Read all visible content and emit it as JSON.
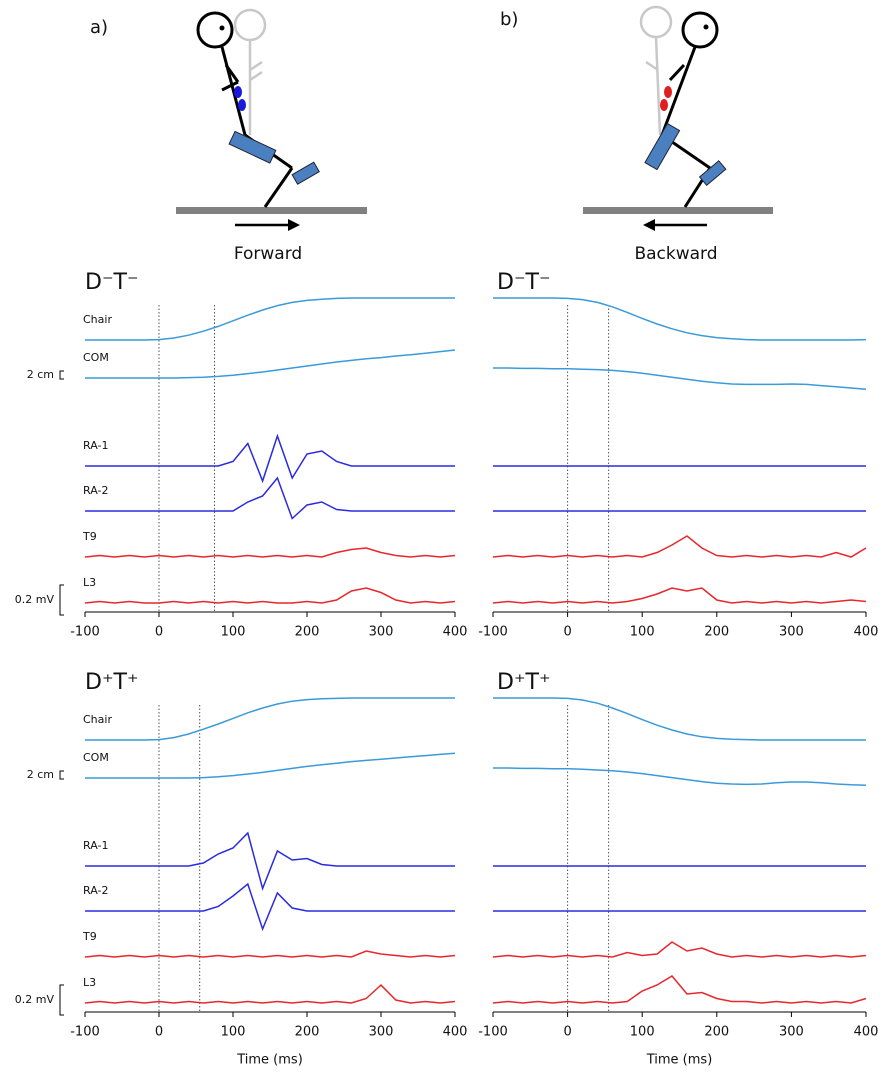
{
  "illustration": {
    "labels": [
      "a)",
      "b)"
    ],
    "directions": [
      "Forward",
      "Backward"
    ]
  },
  "chart_data": [
    {
      "type": "line",
      "title": "D⁻T⁻",
      "xlim": [
        -100,
        400
      ],
      "xticks": [
        -100,
        0,
        100,
        200,
        300,
        400
      ],
      "markers": [
        0,
        75
      ],
      "scale_bars": [
        {
          "label": "2 cm",
          "value": 2
        },
        {
          "label": "0.2 mV",
          "value": 0.2
        }
      ],
      "x": [
        -100,
        -80,
        -60,
        -40,
        -20,
        0,
        20,
        40,
        60,
        80,
        100,
        120,
        140,
        160,
        180,
        200,
        220,
        240,
        260,
        280,
        300,
        320,
        340,
        360,
        380,
        400
      ],
      "series": [
        {
          "name": "Chair",
          "color": "#3b9ad9",
          "values": [
            0,
            0,
            0,
            0,
            0,
            0.1,
            0.5,
            1.2,
            2.2,
            3.4,
            4.8,
            6.2,
            7.5,
            8.6,
            9.4,
            9.9,
            10.2,
            10.4,
            10.5,
            10.5,
            10.5,
            10.5,
            10.5,
            10.5,
            10.5,
            10.5
          ]
        },
        {
          "name": "COM",
          "color": "#3b9ad9",
          "values": [
            0,
            0,
            0,
            0,
            0,
            0,
            0,
            0.1,
            0.2,
            0.4,
            0.7,
            1.1,
            1.5,
            2,
            2.5,
            3,
            3.5,
            4,
            4.4,
            4.8,
            5.1,
            5.5,
            5.8,
            6.2,
            6.6,
            7
          ]
        },
        {
          "name": "RA-1",
          "color": "#2a2ae0",
          "values": [
            0,
            0,
            0,
            0,
            0,
            0,
            0,
            0,
            0,
            0,
            0.03,
            0.15,
            -0.1,
            0.2,
            -0.08,
            0.08,
            0.1,
            0.03,
            0,
            0,
            0,
            0,
            0,
            0,
            0,
            0
          ]
        },
        {
          "name": "RA-2",
          "color": "#2a2ae0",
          "values": [
            0,
            0,
            0,
            0,
            0,
            0,
            0,
            0,
            0,
            0,
            0,
            0.06,
            0.1,
            0.22,
            -0.05,
            0.04,
            0.06,
            0.01,
            0,
            0,
            0,
            0,
            0,
            0,
            0,
            0
          ]
        },
        {
          "name": "T9",
          "color": "#e8262b",
          "values": [
            0,
            0.01,
            0,
            0.01,
            0,
            0.01,
            0,
            0.01,
            0,
            0.01,
            0,
            0.01,
            0,
            0.01,
            0,
            0.01,
            0,
            0.03,
            0.05,
            0.06,
            0.03,
            0.01,
            0,
            0.01,
            0,
            0.01
          ]
        },
        {
          "name": "L3",
          "color": "#e8262b",
          "values": [
            0,
            0.01,
            0,
            0.01,
            0,
            0,
            0.01,
            0,
            0.01,
            0,
            0.01,
            0,
            0.01,
            0,
            0,
            0.01,
            0,
            0.02,
            0.08,
            0.1,
            0.07,
            0.02,
            0,
            0.01,
            0,
            0.01
          ]
        }
      ]
    },
    {
      "type": "line",
      "title": "D⁻T⁻",
      "xlim": [
        -100,
        400
      ],
      "xticks": [
        -100,
        0,
        100,
        200,
        300,
        400
      ],
      "markers": [
        0,
        55
      ],
      "x": [
        -100,
        -80,
        -60,
        -40,
        -20,
        0,
        20,
        40,
        60,
        80,
        100,
        120,
        140,
        160,
        180,
        200,
        220,
        240,
        260,
        280,
        300,
        320,
        340,
        360,
        380,
        400
      ],
      "series": [
        {
          "color": "#3b9ad9",
          "values": [
            10.5,
            10.5,
            10.5,
            10.5,
            10.5,
            10.4,
            10.1,
            9.4,
            8.3,
            6.9,
            5.4,
            4,
            2.8,
            1.8,
            1.1,
            0.6,
            0.3,
            0.1,
            0,
            0,
            0,
            0,
            0,
            0,
            0,
            0.1
          ]
        },
        {
          "color": "#3b9ad9",
          "values": [
            2.5,
            2.5,
            2.4,
            2.4,
            2.3,
            2.3,
            2.2,
            2.1,
            1.9,
            1.6,
            1.2,
            0.7,
            0.2,
            -0.3,
            -0.8,
            -1.2,
            -1.5,
            -1.6,
            -1.6,
            -1.6,
            -1.5,
            -1.6,
            -1.9,
            -2.2,
            -2.5,
            -2.8
          ]
        },
        {
          "color": "#2a2ae0",
          "values": [
            0,
            0,
            0,
            0,
            0,
            0,
            0,
            0,
            0,
            0,
            0,
            0,
            0,
            0,
            0,
            0,
            0,
            0,
            0,
            0,
            0,
            0,
            0,
            0,
            0,
            0
          ]
        },
        {
          "color": "#2a2ae0",
          "values": [
            0,
            0,
            0,
            0,
            0,
            0,
            0,
            0,
            0,
            0,
            0,
            0,
            0,
            0,
            0,
            0,
            0,
            0,
            0,
            0,
            0,
            0,
            0,
            0,
            0,
            0
          ]
        },
        {
          "color": "#e8262b",
          "values": [
            0,
            0.01,
            0,
            0.01,
            0,
            0.01,
            0,
            0.01,
            0,
            0.01,
            0,
            0.03,
            0.08,
            0.14,
            0.06,
            0.01,
            0,
            0.01,
            0,
            0.01,
            0,
            0.01,
            0,
            0.03,
            0,
            0.06
          ]
        },
        {
          "color": "#e8262b",
          "values": [
            0,
            0.01,
            0,
            0.01,
            0,
            0.01,
            0,
            0.01,
            0,
            0.01,
            0.03,
            0.06,
            0.1,
            0.08,
            0.1,
            0.02,
            0,
            0.01,
            0,
            0.01,
            0,
            0.01,
            0,
            0.01,
            0.02,
            0.01
          ]
        }
      ]
    },
    {
      "type": "line",
      "title": "D⁺T⁺",
      "xlim": [
        -100,
        400
      ],
      "xticks": [
        -100,
        0,
        100,
        200,
        300,
        400
      ],
      "markers": [
        0,
        55
      ],
      "xlabel": "Time (ms)",
      "scale_bars": [
        {
          "label": "2 cm",
          "value": 2
        },
        {
          "label": "0.2 mV",
          "value": 0.2
        }
      ],
      "x": [
        -100,
        -80,
        -60,
        -40,
        -20,
        0,
        20,
        40,
        60,
        80,
        100,
        120,
        140,
        160,
        180,
        200,
        220,
        240,
        260,
        280,
        300,
        320,
        340,
        360,
        380,
        400
      ],
      "series": [
        {
          "name": "Chair",
          "color": "#3b9ad9",
          "values": [
            0,
            0,
            0,
            0,
            0,
            0.1,
            0.6,
            1.5,
            2.7,
            4,
            5.4,
            6.8,
            8,
            9,
            9.7,
            10.1,
            10.3,
            10.4,
            10.5,
            10.5,
            10.5,
            10.5,
            10.5,
            10.5,
            10.5,
            10.5
          ]
        },
        {
          "name": "COM",
          "color": "#3b9ad9",
          "values": [
            0,
            0,
            0,
            0,
            0,
            0,
            0,
            0,
            0.1,
            0.3,
            0.6,
            1,
            1.4,
            1.9,
            2.4,
            2.9,
            3.3,
            3.7,
            4.1,
            4.4,
            4.7,
            5,
            5.3,
            5.6,
            5.9,
            6.2
          ]
        },
        {
          "name": "RA-1",
          "color": "#2a2ae0",
          "values": [
            0,
            0,
            0,
            0,
            0,
            0,
            0,
            0,
            0.02,
            0.08,
            0.12,
            0.22,
            -0.15,
            0.1,
            0.04,
            0.05,
            0.01,
            0,
            0,
            0,
            0,
            0,
            0,
            0,
            0,
            0
          ]
        },
        {
          "name": "RA-2",
          "color": "#2a2ae0",
          "values": [
            0,
            0,
            0,
            0,
            0,
            0,
            0,
            0,
            0,
            0.03,
            0.1,
            0.18,
            -0.12,
            0.12,
            0.02,
            0,
            0,
            0,
            0,
            0,
            0,
            0,
            0,
            0,
            0,
            0
          ]
        },
        {
          "name": "T9",
          "color": "#e8262b",
          "values": [
            0,
            0.01,
            0,
            0.01,
            0,
            0.01,
            0,
            0.01,
            0,
            0.01,
            0,
            0.01,
            0,
            0.01,
            0,
            0.01,
            0,
            0.01,
            0,
            0.04,
            0.02,
            0.01,
            0,
            0.01,
            0,
            0.01
          ]
        },
        {
          "name": "L3",
          "color": "#e8262b",
          "values": [
            0,
            0.01,
            0,
            0.01,
            0,
            0.01,
            0,
            0.01,
            0,
            0.01,
            0,
            0.01,
            0,
            0.01,
            0,
            0.01,
            0,
            0.01,
            0,
            0.03,
            0.12,
            0.02,
            0,
            0.01,
            0,
            0.01
          ]
        }
      ]
    },
    {
      "type": "line",
      "title": "D⁺T⁺",
      "xlim": [
        -100,
        400
      ],
      "xticks": [
        -100,
        0,
        100,
        200,
        300,
        400
      ],
      "markers": [
        0,
        55
      ],
      "xlabel": "Time (ms)",
      "x": [
        -100,
        -80,
        -60,
        -40,
        -20,
        0,
        20,
        40,
        60,
        80,
        100,
        120,
        140,
        160,
        180,
        200,
        220,
        240,
        260,
        280,
        300,
        320,
        340,
        360,
        380,
        400
      ],
      "series": [
        {
          "color": "#3b9ad9",
          "values": [
            10.5,
            10.5,
            10.5,
            10.5,
            10.5,
            10.4,
            10,
            9.2,
            8,
            6.6,
            5.1,
            3.7,
            2.5,
            1.5,
            0.8,
            0.4,
            0.2,
            0.1,
            0,
            0,
            0,
            0,
            0,
            0,
            0,
            0
          ]
        },
        {
          "color": "#3b9ad9",
          "values": [
            2.5,
            2.5,
            2.4,
            2.4,
            2.3,
            2.3,
            2.2,
            2,
            1.8,
            1.5,
            1.1,
            0.6,
            0.1,
            -0.4,
            -0.9,
            -1.3,
            -1.5,
            -1.6,
            -1.5,
            -1.2,
            -1,
            -1,
            -1.2,
            -1.5,
            -1.7,
            -1.8
          ]
        },
        {
          "color": "#2a2ae0",
          "values": [
            0,
            0,
            0,
            0,
            0,
            0,
            0,
            0,
            0,
            0,
            0,
            0,
            0,
            0,
            0,
            0,
            0,
            0,
            0,
            0,
            0,
            0,
            0,
            0,
            0,
            0
          ]
        },
        {
          "color": "#2a2ae0",
          "values": [
            0,
            0,
            0,
            0,
            0,
            0,
            0,
            0,
            0,
            0,
            0,
            0,
            0,
            0,
            0,
            0,
            0,
            0,
            0,
            0,
            0,
            0,
            0,
            0,
            0,
            0
          ]
        },
        {
          "color": "#e8262b",
          "values": [
            0,
            0.01,
            0,
            0.01,
            0,
            0.01,
            0,
            0.01,
            0,
            0.03,
            0.01,
            0.02,
            0.1,
            0.04,
            0.06,
            0.02,
            0,
            0.01,
            0,
            0.01,
            0,
            0.01,
            0,
            0.01,
            0,
            0.01
          ]
        },
        {
          "color": "#e8262b",
          "values": [
            0,
            0.01,
            0,
            0.01,
            0,
            0.01,
            0,
            0.01,
            0,
            0.01,
            0.08,
            0.12,
            0.18,
            0.06,
            0.07,
            0.03,
            0.01,
            0.01,
            0,
            0.01,
            0,
            0.01,
            0,
            0.01,
            0,
            0.03
          ]
        }
      ]
    }
  ]
}
